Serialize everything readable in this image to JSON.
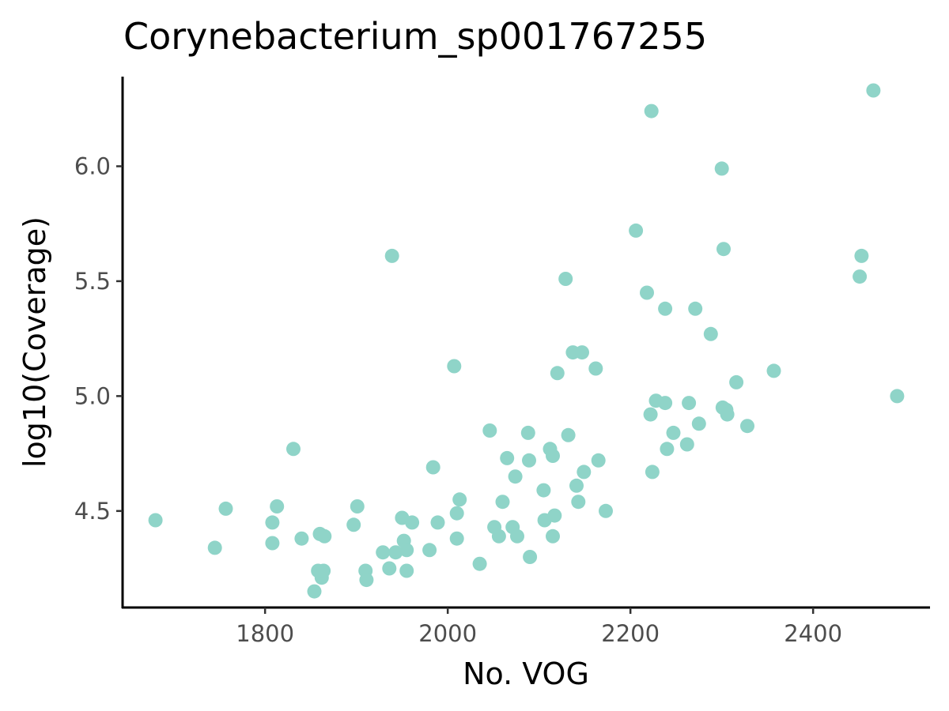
{
  "chart_data": {
    "type": "scatter",
    "title": "Corynebacterium_sp001767255",
    "xlabel": "No. VOG",
    "ylabel": "log10(Coverage)",
    "xlim": [
      1644,
      2528
    ],
    "ylim": [
      4.08,
      6.39
    ],
    "xticks": [
      1800,
      2000,
      2200,
      2400
    ],
    "xtick_labels": [
      "1800",
      "2000",
      "2200",
      "2400"
    ],
    "yticks": [
      4.5,
      5.0,
      5.5,
      6.0
    ],
    "ytick_labels": [
      "4.5",
      "5.0",
      "5.5",
      "6.0"
    ],
    "grid": false,
    "legend": "none",
    "point_color": "#8fd4c8",
    "points": [
      [
        1680,
        4.46
      ],
      [
        1745,
        4.34
      ],
      [
        1757,
        4.51
      ],
      [
        1808,
        4.45
      ],
      [
        1808,
        4.36
      ],
      [
        1813,
        4.52
      ],
      [
        1831,
        4.77
      ],
      [
        1840,
        4.38
      ],
      [
        1854,
        4.15
      ],
      [
        1858,
        4.24
      ],
      [
        1860,
        4.4
      ],
      [
        1862,
        4.21
      ],
      [
        1864,
        4.24
      ],
      [
        1865,
        4.39
      ],
      [
        1897,
        4.44
      ],
      [
        1901,
        4.52
      ],
      [
        1910,
        4.24
      ],
      [
        1911,
        4.2
      ],
      [
        1929,
        4.32
      ],
      [
        1936,
        4.25
      ],
      [
        1939,
        5.61
      ],
      [
        1943,
        4.32
      ],
      [
        1950,
        4.47
      ],
      [
        1952,
        4.37
      ],
      [
        1955,
        4.33
      ],
      [
        1955,
        4.24
      ],
      [
        1961,
        4.45
      ],
      [
        1980,
        4.33
      ],
      [
        1984,
        4.69
      ],
      [
        1989,
        4.45
      ],
      [
        2007,
        5.13
      ],
      [
        2010,
        4.38
      ],
      [
        2010,
        4.49
      ],
      [
        2013,
        4.55
      ],
      [
        2035,
        4.27
      ],
      [
        2046,
        4.85
      ],
      [
        2051,
        4.43
      ],
      [
        2056,
        4.39
      ],
      [
        2060,
        4.54
      ],
      [
        2065,
        4.73
      ],
      [
        2071,
        4.43
      ],
      [
        2074,
        4.65
      ],
      [
        2076,
        4.39
      ],
      [
        2088,
        4.84
      ],
      [
        2089,
        4.72
      ],
      [
        2090,
        4.3
      ],
      [
        2105,
        4.59
      ],
      [
        2106,
        4.46
      ],
      [
        2112,
        4.77
      ],
      [
        2115,
        4.74
      ],
      [
        2115,
        4.39
      ],
      [
        2117,
        4.48
      ],
      [
        2120,
        5.1
      ],
      [
        2129,
        5.51
      ],
      [
        2132,
        4.83
      ],
      [
        2137,
        5.19
      ],
      [
        2141,
        4.61
      ],
      [
        2143,
        4.54
      ],
      [
        2147,
        5.19
      ],
      [
        2149,
        4.67
      ],
      [
        2162,
        5.12
      ],
      [
        2165,
        4.72
      ],
      [
        2173,
        4.5
      ],
      [
        2206,
        5.72
      ],
      [
        2218,
        5.45
      ],
      [
        2222,
        4.92
      ],
      [
        2223,
        6.24
      ],
      [
        2224,
        4.67
      ],
      [
        2228,
        4.98
      ],
      [
        2238,
        5.38
      ],
      [
        2238,
        4.97
      ],
      [
        2240,
        4.77
      ],
      [
        2247,
        4.84
      ],
      [
        2262,
        4.79
      ],
      [
        2264,
        4.97
      ],
      [
        2271,
        5.38
      ],
      [
        2275,
        4.88
      ],
      [
        2288,
        5.27
      ],
      [
        2300,
        5.99
      ],
      [
        2301,
        4.95
      ],
      [
        2302,
        5.64
      ],
      [
        2305,
        4.94
      ],
      [
        2306,
        4.92
      ],
      [
        2316,
        5.06
      ],
      [
        2328,
        4.87
      ],
      [
        2357,
        5.11
      ],
      [
        2451,
        5.52
      ],
      [
        2453,
        5.61
      ],
      [
        2466,
        6.33
      ],
      [
        2492,
        5.0
      ]
    ]
  }
}
